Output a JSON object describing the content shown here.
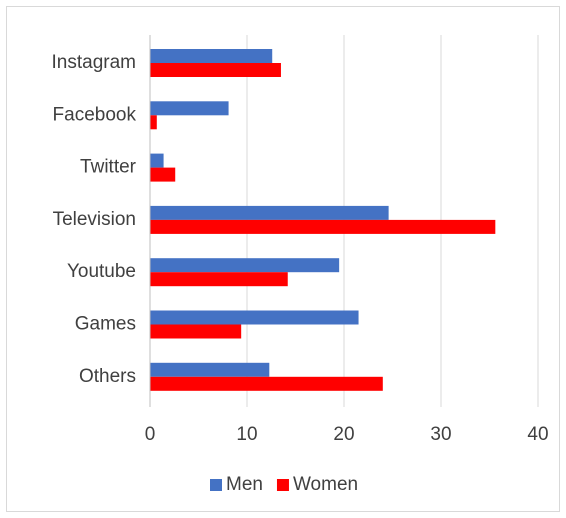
{
  "chart_data": {
    "type": "bar",
    "orientation": "horizontal",
    "categories": [
      "Instagram",
      "Facebook",
      "Twitter",
      "Television",
      "Youtube",
      "Games",
      "Others"
    ],
    "series": [
      {
        "name": "Men",
        "color": "#4472c4",
        "values": [
          12.6,
          8.1,
          1.4,
          24.6,
          19.5,
          21.5,
          12.3
        ]
      },
      {
        "name": "Women",
        "color": "#ff0000",
        "values": [
          13.5,
          0.7,
          2.6,
          35.6,
          14.2,
          9.4,
          24.0
        ]
      }
    ],
    "x_ticks": [
      0,
      10,
      20,
      30,
      40
    ],
    "xlim": [
      0,
      40
    ],
    "grid": true,
    "legend_position": "bottom",
    "title": "",
    "xlabel": "",
    "ylabel": ""
  }
}
